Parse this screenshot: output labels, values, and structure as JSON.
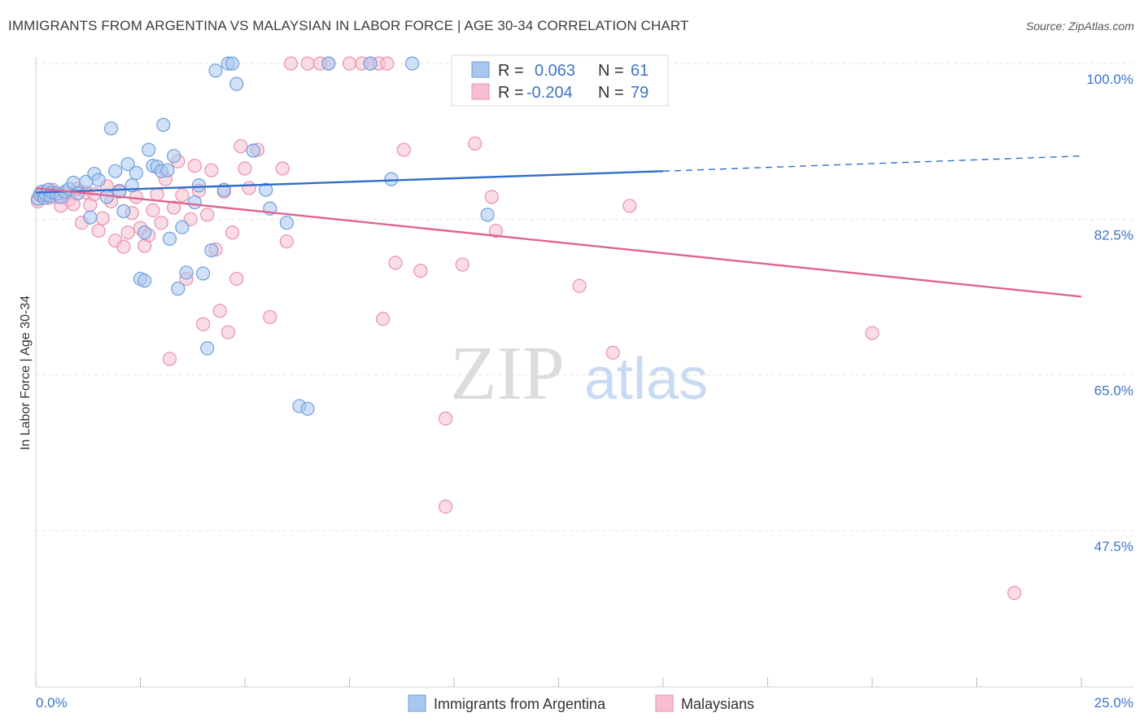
{
  "header": {
    "title": "IMMIGRANTS FROM ARGENTINA VS MALAYSIAN IN LABOR FORCE | AGE 30-34 CORRELATION CHART",
    "source": "Source: ZipAtlas.com"
  },
  "watermark": {
    "zip": "ZIP",
    "atlas": "atlas"
  },
  "colors": {
    "blue_fill": "#a9c6ee",
    "blue_stroke": "#6f9fdc",
    "blue_line": "#2f6fc9",
    "pink_fill": "#f6bfd0",
    "pink_stroke": "#ea8fae",
    "pink_line": "#e0648f",
    "tick_text": "#3d74c8",
    "grid": "#e3e3e3"
  },
  "legend": {
    "rows": [
      {
        "r_label": "R = ",
        "r_value": "0.063",
        "n_label": "N = ",
        "n_value": "61"
      },
      {
        "r_label": "R = ",
        "r_value": "-0.204",
        "n_label": "N = ",
        "n_value": "79"
      }
    ]
  },
  "chart_data": {
    "type": "scatter",
    "title": "IMMIGRANTS FROM ARGENTINA VS MALAYSIAN IN LABOR FORCE | AGE 30-34 CORRELATION CHART",
    "xlabel": "",
    "ylabel": "In Labor Force | Age 30-34",
    "xlim": [
      0,
      25
    ],
    "ylim": [
      35,
      101
    ],
    "x_tick_labels": [
      "0.0%",
      "25.0%"
    ],
    "y_tick_values": [
      100,
      82.5,
      65,
      47.5
    ],
    "y_tick_labels": [
      "100.0%",
      "82.5%",
      "65.0%",
      "47.5%"
    ],
    "grid": true,
    "legend_position": "top-center",
    "series": [
      {
        "name": "Immigrants from Argentina",
        "color": "#a9c6ee",
        "R": 0.063,
        "N": 61,
        "trend": {
          "x": [
            0,
            15
          ],
          "y": [
            85.5,
            87.9
          ],
          "dashed_to": [
            25,
            89.6
          ]
        },
        "points": [
          [
            0.05,
            84.8
          ],
          [
            0.1,
            85.3
          ],
          [
            0.15,
            85.6
          ],
          [
            0.2,
            84.9
          ],
          [
            0.25,
            85.2
          ],
          [
            0.3,
            85.8
          ],
          [
            0.35,
            85.1
          ],
          [
            0.4,
            85.5
          ],
          [
            0.5,
            85.4
          ],
          [
            0.6,
            85.0
          ],
          [
            0.7,
            85.6
          ],
          [
            0.8,
            85.9
          ],
          [
            0.9,
            86.6
          ],
          [
            1.0,
            85.4
          ],
          [
            1.2,
            86.7
          ],
          [
            1.4,
            87.6
          ],
          [
            1.3,
            82.7
          ],
          [
            1.5,
            86.9
          ],
          [
            1.7,
            85.0
          ],
          [
            1.8,
            92.7
          ],
          [
            1.9,
            87.9
          ],
          [
            2.0,
            85.6
          ],
          [
            2.1,
            83.4
          ],
          [
            2.2,
            88.7
          ],
          [
            2.3,
            86.3
          ],
          [
            2.4,
            87.7
          ],
          [
            2.5,
            75.8
          ],
          [
            2.6,
            75.6
          ],
          [
            2.6,
            81.0
          ],
          [
            2.7,
            90.3
          ],
          [
            2.8,
            88.5
          ],
          [
            2.9,
            88.4
          ],
          [
            3.0,
            87.9
          ],
          [
            3.05,
            93.1
          ],
          [
            3.15,
            88.0
          ],
          [
            3.2,
            80.3
          ],
          [
            3.3,
            89.6
          ],
          [
            3.4,
            74.7
          ],
          [
            3.5,
            81.6
          ],
          [
            3.6,
            76.5
          ],
          [
            3.8,
            84.4
          ],
          [
            3.9,
            86.3
          ],
          [
            4.0,
            76.4
          ],
          [
            4.1,
            68.0
          ],
          [
            4.2,
            79.0
          ],
          [
            4.3,
            99.2
          ],
          [
            4.6,
            100.0
          ],
          [
            4.7,
            100.0
          ],
          [
            4.8,
            97.7
          ],
          [
            4.5,
            85.8
          ],
          [
            5.2,
            90.2
          ],
          [
            5.5,
            85.8
          ],
          [
            5.6,
            83.7
          ],
          [
            6.0,
            82.1
          ],
          [
            6.3,
            61.5
          ],
          [
            6.5,
            61.2
          ],
          [
            7.0,
            100.0
          ],
          [
            8.0,
            100.0
          ],
          [
            8.5,
            87.0
          ],
          [
            9.0,
            100.0
          ],
          [
            10.8,
            83.0
          ]
        ]
      },
      {
        "name": "Malaysians",
        "color": "#f6bfd0",
        "R": -0.204,
        "N": 79,
        "trend": {
          "x": [
            0,
            25
          ],
          "y": [
            86.0,
            73.8
          ]
        },
        "points": [
          [
            0.05,
            84.5
          ],
          [
            0.1,
            85.2
          ],
          [
            0.2,
            85.5
          ],
          [
            0.3,
            84.9
          ],
          [
            0.4,
            85.8
          ],
          [
            0.5,
            85.0
          ],
          [
            0.6,
            84.0
          ],
          [
            0.7,
            85.4
          ],
          [
            0.8,
            84.7
          ],
          [
            0.9,
            84.2
          ],
          [
            1.0,
            85.9
          ],
          [
            1.1,
            82.1
          ],
          [
            1.2,
            85.5
          ],
          [
            1.3,
            84.1
          ],
          [
            1.4,
            85.3
          ],
          [
            1.5,
            81.2
          ],
          [
            1.6,
            82.6
          ],
          [
            1.7,
            86.2
          ],
          [
            1.8,
            84.5
          ],
          [
            1.9,
            80.1
          ],
          [
            2.0,
            85.7
          ],
          [
            2.1,
            79.4
          ],
          [
            2.2,
            81.0
          ],
          [
            2.3,
            83.2
          ],
          [
            2.4,
            85.0
          ],
          [
            2.5,
            81.5
          ],
          [
            2.6,
            79.5
          ],
          [
            2.7,
            80.7
          ],
          [
            2.8,
            83.5
          ],
          [
            2.9,
            85.3
          ],
          [
            3.0,
            82.1
          ],
          [
            3.1,
            87.0
          ],
          [
            3.2,
            66.8
          ],
          [
            3.3,
            83.8
          ],
          [
            3.4,
            89.0
          ],
          [
            3.5,
            85.2
          ],
          [
            3.6,
            75.8
          ],
          [
            3.7,
            82.5
          ],
          [
            3.8,
            88.5
          ],
          [
            3.9,
            85.7
          ],
          [
            4.0,
            70.7
          ],
          [
            4.1,
            83.0
          ],
          [
            4.2,
            88.0
          ],
          [
            4.3,
            79.1
          ],
          [
            4.4,
            72.2
          ],
          [
            4.5,
            85.6
          ],
          [
            4.6,
            69.8
          ],
          [
            4.7,
            81.0
          ],
          [
            4.8,
            75.8
          ],
          [
            4.9,
            90.7
          ],
          [
            5.0,
            88.2
          ],
          [
            5.1,
            86.0
          ],
          [
            5.3,
            90.3
          ],
          [
            5.6,
            71.5
          ],
          [
            5.9,
            88.2
          ],
          [
            6.0,
            80.0
          ],
          [
            6.1,
            100.0
          ],
          [
            6.5,
            100.0
          ],
          [
            6.8,
            100.0
          ],
          [
            7.0,
            100.0
          ],
          [
            7.5,
            100.0
          ],
          [
            7.8,
            100.0
          ],
          [
            8.0,
            100.0
          ],
          [
            8.2,
            100.0
          ],
          [
            8.4,
            100.0
          ],
          [
            8.3,
            71.3
          ],
          [
            8.6,
            77.6
          ],
          [
            8.8,
            90.3
          ],
          [
            9.2,
            76.7
          ],
          [
            9.8,
            60.1
          ],
          [
            9.8,
            50.2
          ],
          [
            10.2,
            77.4
          ],
          [
            10.5,
            91.0
          ],
          [
            10.9,
            85.0
          ],
          [
            11.0,
            81.2
          ],
          [
            13.0,
            75.0
          ],
          [
            13.8,
            67.5
          ],
          [
            14.2,
            84.0
          ],
          [
            20.0,
            69.7
          ],
          [
            23.4,
            40.5
          ]
        ]
      }
    ]
  }
}
